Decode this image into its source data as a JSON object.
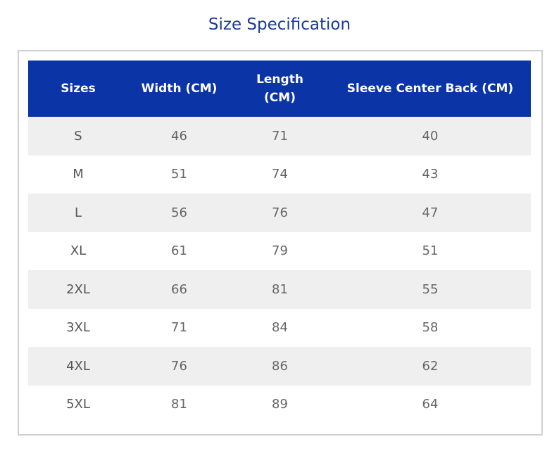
{
  "header": {
    "title": "Size Specification"
  },
  "table": {
    "columns": [
      "Sizes",
      "Width (CM)",
      "Length (CM)",
      "Sleeve Center Back (CM)"
    ],
    "rows": [
      [
        "S",
        46,
        71,
        40
      ],
      [
        "M",
        51,
        74,
        43
      ],
      [
        "L",
        56,
        76,
        47
      ],
      [
        "XL",
        61,
        79,
        51
      ],
      [
        "2XL",
        66,
        81,
        55
      ],
      [
        "3XL",
        71,
        84,
        58
      ],
      [
        "4XL",
        76,
        86,
        62
      ],
      [
        "5XL",
        81,
        89,
        64
      ]
    ]
  }
}
